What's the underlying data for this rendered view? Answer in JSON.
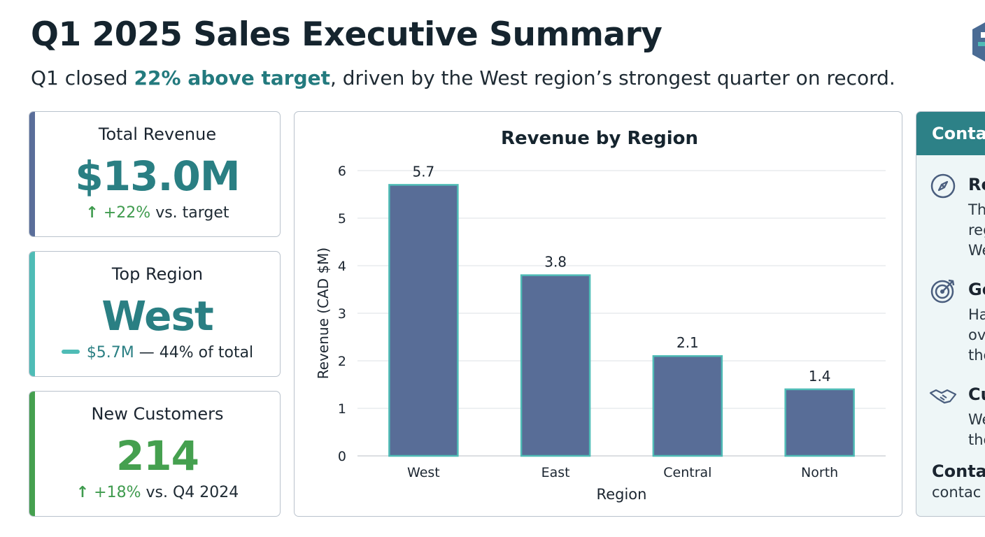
{
  "header": {
    "title": "Q1 2025 Sales Executive Summary",
    "subtitle_before": "Q1 closed ",
    "subtitle_highlight": "22% above target",
    "subtitle_after": ", driven by the West region’s strongest quarter on record."
  },
  "kpis": [
    {
      "label": "Total Revenue",
      "value": "$13.0M",
      "note_pct": "+22%",
      "note_rest": " vs. target",
      "accent": "#5a6e9a",
      "value_color": "#2a7f83"
    },
    {
      "label": "Top Region",
      "value": "West",
      "note_pct": "$5.7M",
      "note_rest": " — 44% of total",
      "accent": "#4fbcb6",
      "value_color": "#2a7f83"
    },
    {
      "label": "New Customers",
      "value": "214",
      "note_pct": "+18%",
      "note_rest": " vs. Q4 2024",
      "accent": "#45a04f",
      "value_color": "#45a04f"
    }
  ],
  "chart_data": {
    "type": "bar",
    "title": "Revenue by Region",
    "xlabel": "Region",
    "ylabel": "Revenue (CAD $M)",
    "categories": [
      "West",
      "East",
      "Central",
      "North"
    ],
    "values": [
      5.7,
      3.8,
      2.1,
      1.4
    ],
    "value_labels": [
      "5.7",
      "3.8",
      "2.1",
      "1.4"
    ],
    "ylim": [
      0,
      6
    ],
    "yticks": [
      0,
      1,
      2,
      3,
      4,
      5,
      6
    ],
    "grid": true,
    "bar_color": "#586d97",
    "bar_edge_color": "#4fbcb6"
  },
  "side_panel": {
    "header": "Conta",
    "items": [
      {
        "icon": "compass-icon",
        "heading": "Re",
        "lines": [
          "Th",
          "reg",
          "We"
        ]
      },
      {
        "icon": "target-icon",
        "heading": "Go",
        "lines": [
          "Ha",
          "ov",
          "the"
        ]
      },
      {
        "icon": "handshake-icon",
        "heading": "Cu",
        "lines": [
          "We",
          "the"
        ]
      }
    ],
    "footer_heading": "Conta",
    "footer_text": "contac"
  },
  "colors": {
    "accent_teal": "#2a7f83",
    "accent_green": "#45a04f",
    "accent_navy": "#5a6e9a",
    "panel_header": "#2d8187"
  }
}
